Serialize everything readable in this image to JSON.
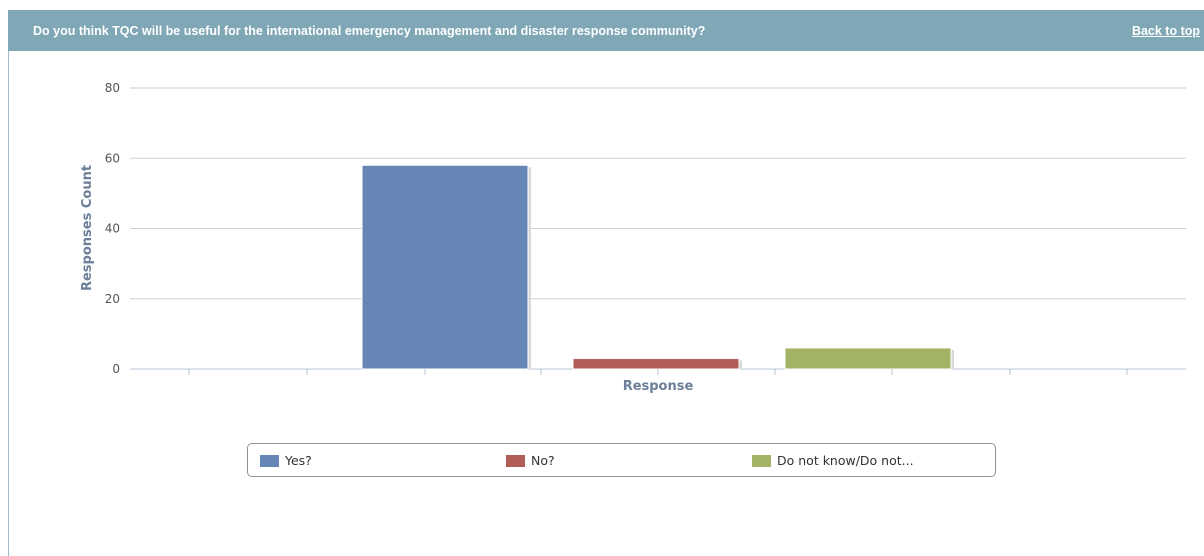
{
  "header": {
    "question": "Do you think TQC will be useful for the international emergency management and disaster response community?",
    "back_to_top": "Back to top"
  },
  "chart_data": {
    "type": "bar",
    "categories": [
      "Yes?",
      "No?",
      "Do not know/Do not..."
    ],
    "values": [
      58,
      3,
      6
    ],
    "colors": [
      "#6687b5",
      "#b05e56",
      "#a2b365"
    ],
    "xlabel": "Response",
    "ylabel": "Responses Count",
    "ylim": [
      0,
      80
    ],
    "yticks": [
      0,
      20,
      40,
      60,
      80
    ],
    "grid": true,
    "legend_position": "bottom"
  }
}
